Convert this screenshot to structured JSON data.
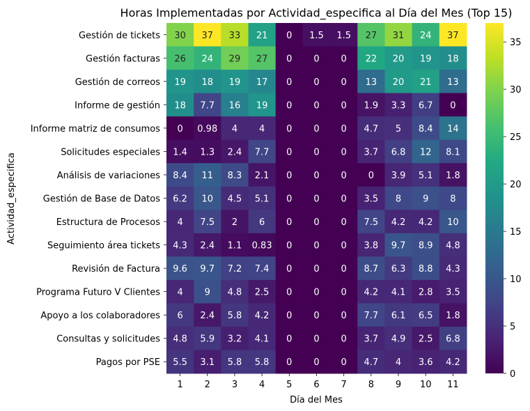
{
  "chart_data": {
    "type": "heatmap",
    "title": "Horas Implementadas por Actividad_especifica al Día del Mes (Top 15)",
    "xlabel": "Día del Mes",
    "ylabel": "Actividad_especifica",
    "x_categories": [
      "1",
      "2",
      "3",
      "4",
      "5",
      "6",
      "7",
      "8",
      "9",
      "10",
      "11"
    ],
    "y_categories": [
      "Gestión de tickets",
      "Gestión facturas",
      "Gestión de correos",
      "Informe de gestión",
      "Informe matriz de consumos",
      "Solicitudes especiales",
      "Análisis de variaciones",
      "Gestión de Base de Datos",
      "Estructura de Procesos",
      "Seguimiento área tickets",
      "Revisión de Factura",
      "Programa Futuro V Clientes",
      "Apoyo a los colaboradores",
      "Consultas y solicitudes",
      "Pagos por PSE"
    ],
    "values": [
      [
        30,
        37,
        33,
        21,
        0,
        1.5,
        1.5,
        27,
        31,
        24,
        37
      ],
      [
        26,
        24,
        29,
        27,
        0,
        0,
        0,
        22,
        20,
        19,
        18
      ],
      [
        19,
        18,
        19,
        17,
        0,
        0,
        0,
        13,
        20,
        21,
        13
      ],
      [
        18,
        7.7,
        16,
        19,
        0,
        0,
        0,
        1.9,
        3.3,
        6.7,
        0
      ],
      [
        0,
        0.98,
        4,
        4,
        0,
        0,
        0,
        4.7,
        5,
        8.4,
        14
      ],
      [
        1.4,
        1.3,
        2.4,
        7.7,
        0,
        0,
        0,
        3.7,
        6.8,
        12,
        8.1
      ],
      [
        8.4,
        11,
        8.3,
        2.1,
        0,
        0,
        0,
        0,
        3.9,
        5.1,
        1.8
      ],
      [
        6.2,
        10,
        4.5,
        5.1,
        0,
        0,
        0,
        3.5,
        8,
        9,
        8
      ],
      [
        4,
        7.5,
        2,
        6,
        0,
        0,
        0,
        7.5,
        4.2,
        4.2,
        10
      ],
      [
        4.3,
        2.4,
        1.1,
        0.83,
        0,
        0,
        0,
        3.8,
        9.7,
        8.9,
        4.8
      ],
      [
        9.6,
        9.7,
        7.2,
        7.4,
        0,
        0,
        0,
        8.7,
        6.3,
        8.8,
        4.3
      ],
      [
        4,
        9,
        4.8,
        2.5,
        0,
        0,
        0,
        4.2,
        4.1,
        2.8,
        3.5
      ],
      [
        6,
        2.4,
        5.8,
        4.2,
        0,
        0,
        0,
        7.7,
        6.1,
        6.5,
        1.8
      ],
      [
        4.8,
        5.9,
        3.2,
        4.1,
        0,
        0,
        0,
        3.7,
        4.9,
        2.5,
        6.8
      ],
      [
        5.5,
        3.1,
        5.8,
        5.8,
        0,
        0,
        0,
        4.7,
        4,
        3.6,
        4.2
      ]
    ],
    "colormap": "viridis",
    "vmin": 0,
    "vmax": 37,
    "colorbar_ticks": [
      0,
      5,
      10,
      15,
      20,
      25,
      30,
      35
    ],
    "annotations_shown": true,
    "grid": false
  }
}
